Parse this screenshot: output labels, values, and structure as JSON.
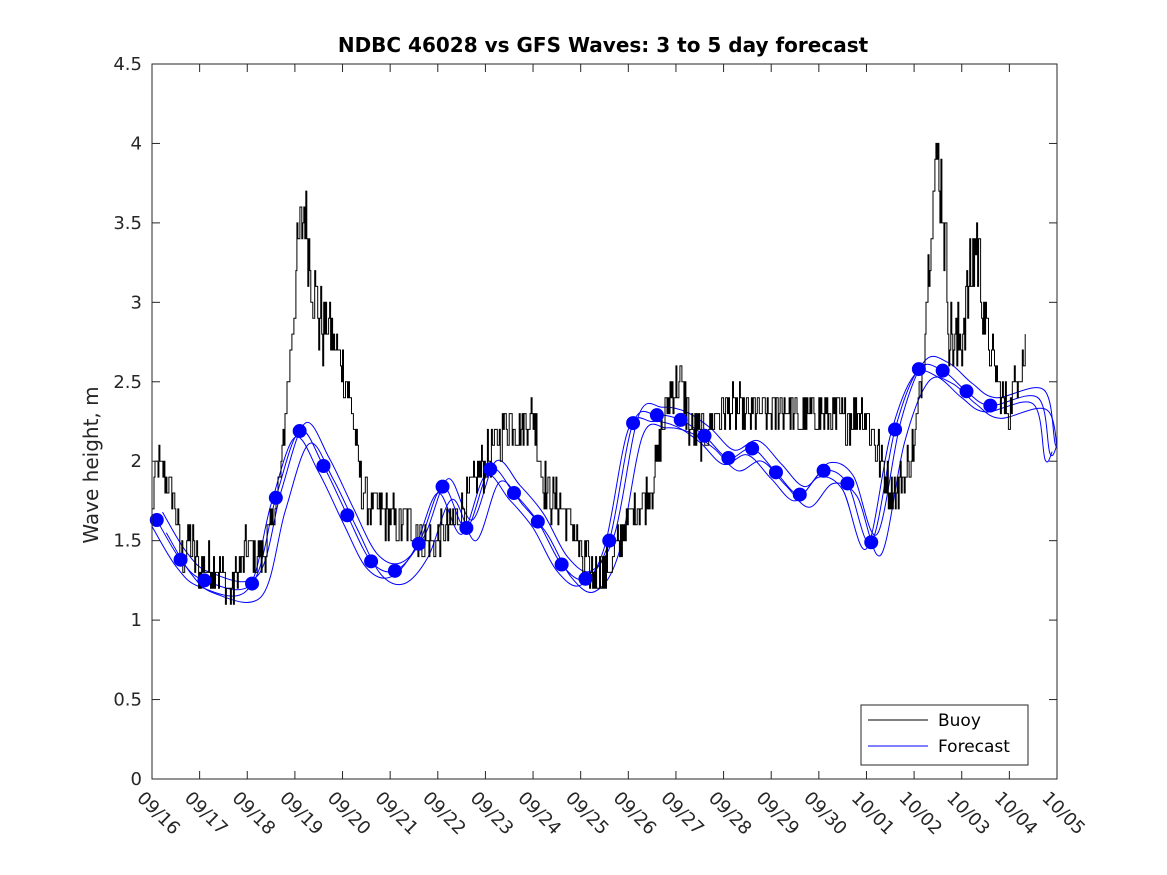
{
  "chart_data": {
    "type": "line",
    "title": "NDBC 46028 vs GFS Waves: 3 to 5 day forecast",
    "xlabel": "",
    "ylabel": "Wave height, m",
    "xlim": [
      0,
      19
    ],
    "ylim": [
      0,
      4.5
    ],
    "grid": false,
    "legend_position": "bottom-right",
    "x_ticks": [
      0,
      1,
      2,
      3,
      4,
      5,
      6,
      7,
      8,
      9,
      10,
      11,
      12,
      13,
      14,
      15,
      16,
      17,
      18,
      19
    ],
    "x_tick_labels": [
      "09/16",
      "09/17",
      "09/18",
      "09/19",
      "09/20",
      "09/21",
      "09/22",
      "09/23",
      "09/24",
      "09/25",
      "09/26",
      "09/27",
      "09/28",
      "09/29",
      "09/30",
      "10/01",
      "10/02",
      "10/03",
      "10/04",
      "10/05"
    ],
    "y_ticks": [
      0,
      0.5,
      1,
      1.5,
      2,
      2.5,
      3,
      3.5,
      4,
      4.5
    ],
    "y_tick_labels": [
      "0",
      "0.5",
      "1",
      "1.5",
      "2",
      "2.5",
      "3",
      "3.5",
      "4",
      "4.5"
    ],
    "series": [
      {
        "name": "Buoy",
        "color": "#000000",
        "kind": "noisy-line",
        "anchors": [
          [
            0,
            1.7
          ],
          [
            0.1,
            2.0
          ],
          [
            0.3,
            1.9
          ],
          [
            0.5,
            1.7
          ],
          [
            0.6,
            1.4
          ],
          [
            0.8,
            1.5
          ],
          [
            1.0,
            1.3
          ],
          [
            1.2,
            1.35
          ],
          [
            1.5,
            1.3
          ],
          [
            1.6,
            1.15
          ],
          [
            1.8,
            1.3
          ],
          [
            2.0,
            1.45
          ],
          [
            2.3,
            1.4
          ],
          [
            2.5,
            1.6
          ],
          [
            2.7,
            1.9
          ],
          [
            2.85,
            2.5
          ],
          [
            3.0,
            3.1
          ],
          [
            3.1,
            3.4
          ],
          [
            3.2,
            3.6
          ],
          [
            3.3,
            3.3
          ],
          [
            3.5,
            2.9
          ],
          [
            3.7,
            2.85
          ],
          [
            4.0,
            2.6
          ],
          [
            4.2,
            2.3
          ],
          [
            4.4,
            1.8
          ],
          [
            4.7,
            1.7
          ],
          [
            5.0,
            1.65
          ],
          [
            5.3,
            1.6
          ],
          [
            5.5,
            1.6
          ],
          [
            5.7,
            1.5
          ],
          [
            6.0,
            1.5
          ],
          [
            6.3,
            1.6
          ],
          [
            6.5,
            1.7
          ],
          [
            6.7,
            1.8
          ],
          [
            6.9,
            1.95
          ],
          [
            7.1,
            2.05
          ],
          [
            7.3,
            2.15
          ],
          [
            7.5,
            2.25
          ],
          [
            7.7,
            2.2
          ],
          [
            8.0,
            2.3
          ],
          [
            8.2,
            1.9
          ],
          [
            8.4,
            1.75
          ],
          [
            8.6,
            1.7
          ],
          [
            8.8,
            1.6
          ],
          [
            9.0,
            1.4
          ],
          [
            9.2,
            1.3
          ],
          [
            9.5,
            1.3
          ],
          [
            9.8,
            1.45
          ],
          [
            10.0,
            1.65
          ],
          [
            10.3,
            1.75
          ],
          [
            10.5,
            1.85
          ],
          [
            10.7,
            2.2
          ],
          [
            10.9,
            2.45
          ],
          [
            11.1,
            2.5
          ],
          [
            11.3,
            2.2
          ],
          [
            11.5,
            2.15
          ],
          [
            11.7,
            2.2
          ],
          [
            11.9,
            2.3
          ],
          [
            12.1,
            2.35
          ],
          [
            12.4,
            2.3
          ],
          [
            12.7,
            2.3
          ],
          [
            13.0,
            2.3
          ],
          [
            13.3,
            2.35
          ],
          [
            13.6,
            2.25
          ],
          [
            13.9,
            2.3
          ],
          [
            14.2,
            2.3
          ],
          [
            14.5,
            2.25
          ],
          [
            14.8,
            2.3
          ],
          [
            15.0,
            2.3
          ],
          [
            15.2,
            2.1
          ],
          [
            15.4,
            1.9
          ],
          [
            15.6,
            1.8
          ],
          [
            15.8,
            1.9
          ],
          [
            16.0,
            2.1
          ],
          [
            16.2,
            2.7
          ],
          [
            16.35,
            3.6
          ],
          [
            16.5,
            3.9
          ],
          [
            16.6,
            3.6
          ],
          [
            16.75,
            2.8
          ],
          [
            16.9,
            2.7
          ],
          [
            17.1,
            3.0
          ],
          [
            17.3,
            3.4
          ],
          [
            17.45,
            3.0
          ],
          [
            17.6,
            2.7
          ],
          [
            17.8,
            2.4
          ],
          [
            18.0,
            2.3
          ],
          [
            18.2,
            2.6
          ],
          [
            18.35,
            2.7
          ]
        ]
      },
      {
        "name": "Forecast",
        "color": "#0000ff",
        "kind": "line+markers",
        "marker_x": [
          0.1,
          0.6,
          1.1,
          2.1,
          2.6,
          3.1,
          3.6,
          4.1,
          4.6,
          5.1,
          5.6,
          6.1,
          6.6,
          7.1,
          7.6,
          8.1,
          8.6,
          9.1,
          9.6,
          10.1,
          10.6,
          11.1,
          11.6,
          12.1,
          12.6,
          13.1,
          13.6,
          14.1,
          14.6,
          15.1,
          15.6,
          16.1,
          16.6,
          17.1,
          17.6,
          18.1
        ],
        "marker_y": [
          1.63,
          1.38,
          1.25,
          1.23,
          1.77,
          2.19,
          1.97,
          1.66,
          1.37,
          1.31,
          1.48,
          1.84,
          1.58,
          1.95,
          1.8,
          1.62,
          1.35,
          1.26,
          1.5,
          2.24,
          2.29,
          2.26,
          2.16,
          2.02,
          2.08,
          1.93,
          1.79,
          1.94,
          1.86,
          1.49,
          2.2,
          2.58,
          2.57,
          2.44,
          2.35,
          null
        ]
      }
    ]
  }
}
